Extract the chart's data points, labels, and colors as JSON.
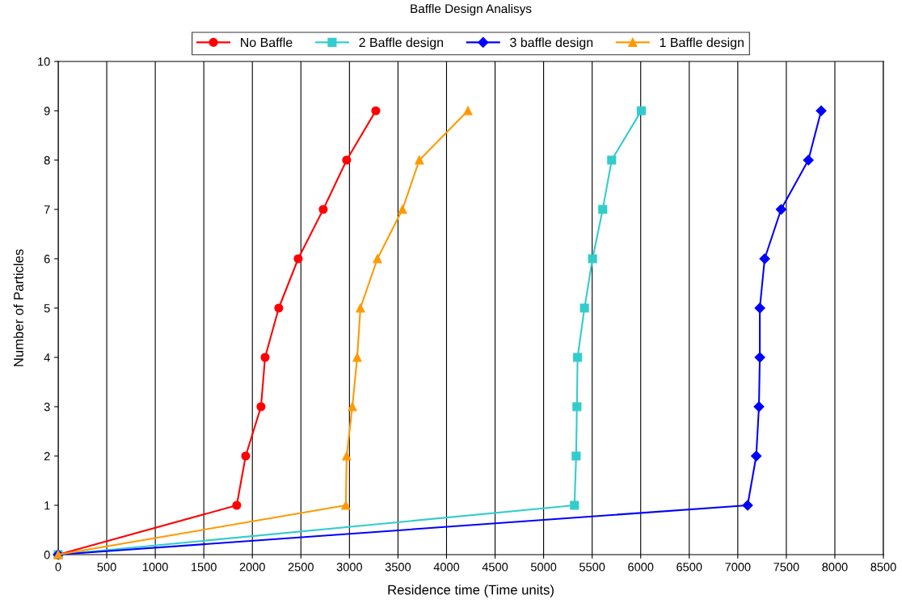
{
  "chart_data": {
    "type": "line",
    "title": "Baffle Design Analisys",
    "xlabel": "Residence time (Time units)",
    "ylabel": "Number of Particles",
    "xlim": [
      0,
      8500
    ],
    "xticks": [
      0,
      500,
      1000,
      1500,
      2000,
      2500,
      3000,
      3500,
      4000,
      4500,
      5000,
      5500,
      6000,
      6500,
      7000,
      7500,
      8000,
      8500
    ],
    "ylim": [
      0,
      10
    ],
    "yticks": [
      0,
      1,
      2,
      3,
      4,
      5,
      6,
      7,
      8,
      9,
      10
    ],
    "grid": "x",
    "legend": "top",
    "series": [
      {
        "name": "No Baffle",
        "color": "#ff0000",
        "marker": "circle",
        "x": [
          0,
          1839,
          1931,
          2089,
          2131,
          2272,
          2472,
          2730,
          2971,
          3271
        ],
        "values": [
          0,
          1,
          2,
          3,
          4,
          5,
          6,
          7,
          8,
          9
        ]
      },
      {
        "name": "2 Baffle design",
        "color": "#33cccc",
        "marker": "square",
        "x": [
          0,
          5318,
          5335,
          5343,
          5350,
          5421,
          5504,
          5609,
          5701,
          6006
        ],
        "values": [
          0,
          1,
          2,
          3,
          4,
          5,
          6,
          7,
          8,
          9
        ]
      },
      {
        "name": "3 baffle design",
        "color": "#0000ff",
        "marker": "diamond",
        "x": [
          0,
          7101,
          7190,
          7218,
          7227,
          7227,
          7277,
          7446,
          7727,
          7859
        ],
        "values": [
          0,
          1,
          2,
          3,
          4,
          5,
          6,
          7,
          8,
          9
        ]
      },
      {
        "name": "1 Baffle design",
        "color": "#ff9900",
        "marker": "triangle",
        "x": [
          0,
          2963,
          2971,
          3030,
          3080,
          3113,
          3288,
          3546,
          3720,
          4220
        ],
        "values": [
          0,
          1,
          2,
          3,
          4,
          5,
          6,
          7,
          8,
          9
        ]
      }
    ]
  }
}
